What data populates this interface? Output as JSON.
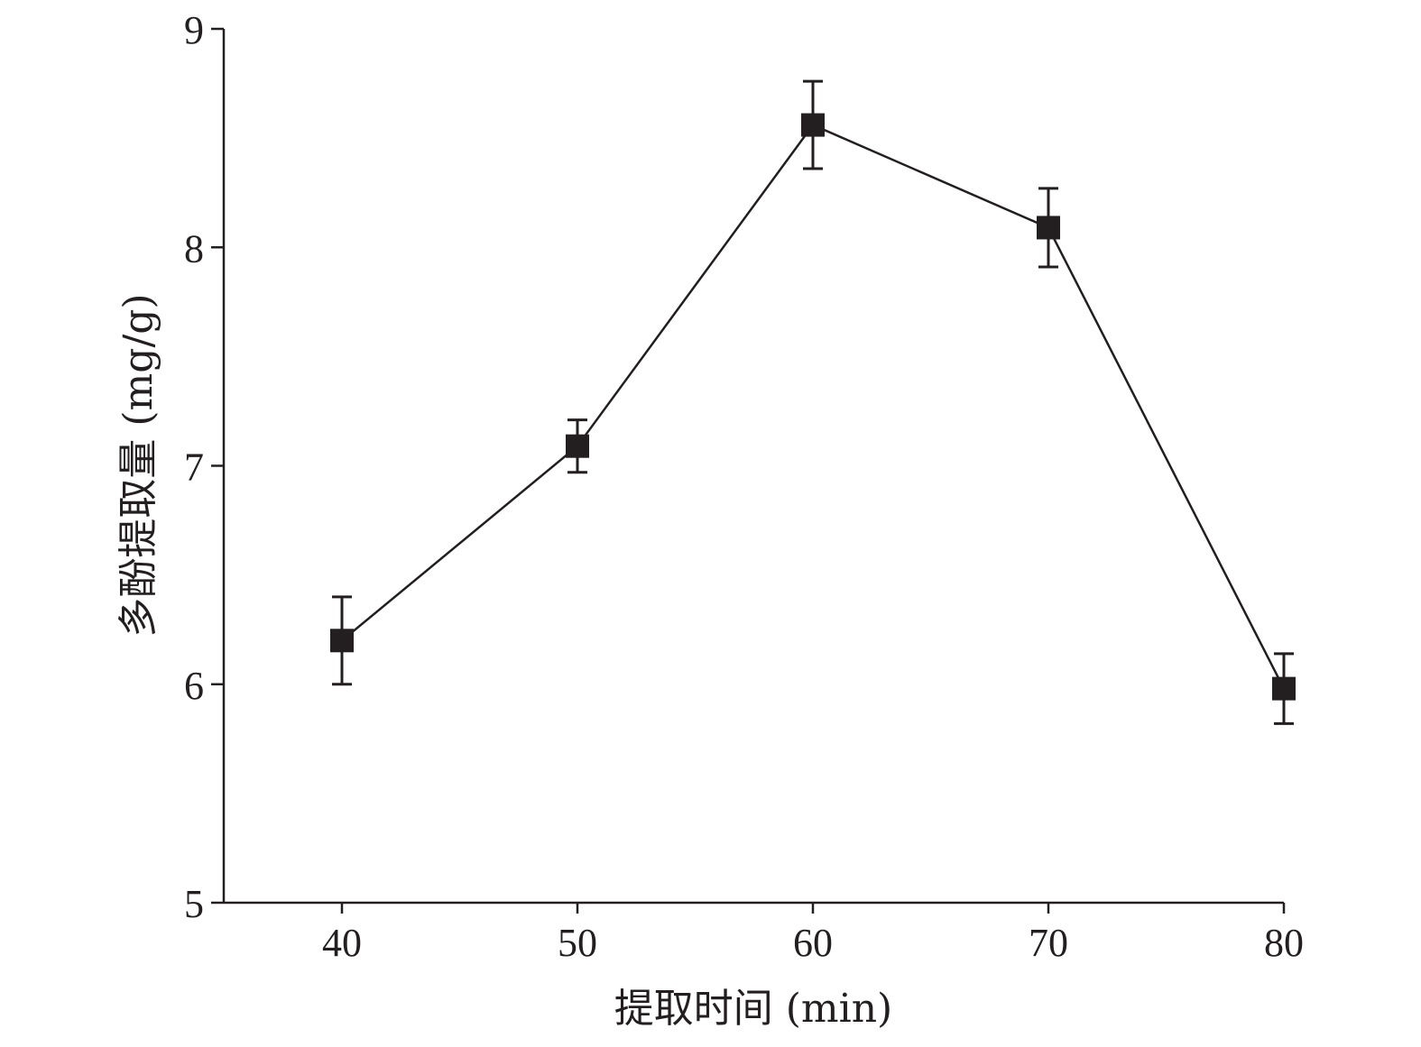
{
  "chart_data": {
    "type": "line",
    "title": "",
    "xlabel": "提取时间 (min)",
    "ylabel": "多酚提取量 (mg/g)",
    "xlim": [
      35,
      80
    ],
    "ylim": [
      5,
      9
    ],
    "x_ticks": [
      40,
      50,
      60,
      70,
      80
    ],
    "y_ticks": [
      5,
      6,
      7,
      8,
      9
    ],
    "grid": false,
    "legend": "none",
    "series": [
      {
        "x": [
          40,
          50,
          60,
          70,
          80
        ],
        "y": [
          6.2,
          7.09,
          8.56,
          8.09,
          5.98
        ],
        "error": [
          0.2,
          0.12,
          0.2,
          0.18,
          0.16
        ],
        "marker": "square",
        "color": "#231f20"
      }
    ]
  }
}
